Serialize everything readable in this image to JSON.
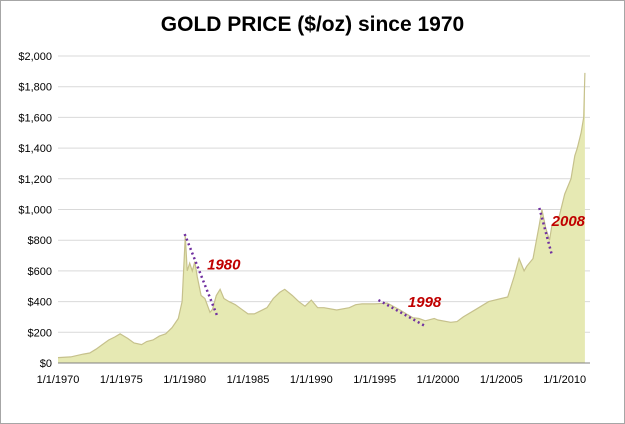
{
  "chart_data": {
    "type": "area",
    "title": "GOLD PRICE ($/oz) since 1970",
    "xlabel": "",
    "ylabel": "",
    "ylim": [
      0,
      2000
    ],
    "yticks": [
      "$0",
      "$200",
      "$400",
      "$600",
      "$800",
      "$1,000",
      "$1,200",
      "$1,400",
      "$1,600",
      "$1,800",
      "$2,000"
    ],
    "xticks": [
      "1/1/1970",
      "1/1/1975",
      "1/1/1980",
      "1/1/1985",
      "1/1/1990",
      "1/1/1995",
      "1/1/2000",
      "1/1/2005",
      "1/1/2010"
    ],
    "grid": "horizontal",
    "legend": "none",
    "colors": {
      "fill": "#e6e9b3",
      "line": "#c6c18c",
      "annotation_line": "#7030a0",
      "annotation_text": "#c00000",
      "grid": "#d9d9d9"
    },
    "series": [
      {
        "x": [
          1970.0,
          1971.0,
          1972.0,
          1972.5,
          1973.0,
          1973.5,
          1974.0,
          1974.5,
          1974.9,
          1975.5,
          1976.0,
          1976.6,
          1977.0,
          1977.5,
          1978.0,
          1978.5,
          1979.0,
          1979.5,
          1979.8,
          1980.05,
          1980.2,
          1980.4,
          1980.6,
          1980.8,
          1981.0,
          1981.3,
          1981.6,
          1982.0,
          1982.2,
          1982.5,
          1982.8,
          1983.1,
          1983.5,
          1984.0,
          1984.5,
          1985.0,
          1985.5,
          1986.0,
          1986.5,
          1987.0,
          1987.5,
          1987.9,
          1988.5,
          1989.0,
          1989.5,
          1990.0,
          1990.5,
          1991.0,
          1992.0,
          1993.0,
          1993.5,
          1994.0,
          1995.0,
          1996.0,
          1997.0,
          1997.5,
          1998.0,
          1998.5,
          1999.0,
          1999.7,
          2000.0,
          2001.0,
          2001.5,
          2002.0,
          2003.0,
          2004.0,
          2005.0,
          2005.5,
          2006.0,
          2006.4,
          2006.8,
          2007.0,
          2007.5,
          2008.0,
          2008.2,
          2008.5,
          2008.8,
          2009.0,
          2009.5,
          2010.0,
          2010.5,
          2010.8,
          2011.0,
          2011.3,
          2011.5,
          2011.6
        ],
        "values": [
          35,
          40,
          58,
          65,
          90,
          120,
          150,
          170,
          190,
          160,
          130,
          120,
          140,
          150,
          175,
          190,
          230,
          290,
          400,
          830,
          600,
          650,
          600,
          660,
          560,
          440,
          420,
          330,
          350,
          440,
          480,
          420,
          400,
          380,
          350,
          320,
          320,
          340,
          360,
          420,
          460,
          480,
          440,
          400,
          370,
          410,
          360,
          360,
          345,
          360,
          380,
          385,
          385,
          390,
          345,
          320,
          295,
          290,
          275,
          290,
          280,
          265,
          270,
          300,
          350,
          400,
          420,
          430,
          560,
          680,
          600,
          630,
          680,
          900,
          1000,
          880,
          800,
          900,
          930,
          1100,
          1200,
          1350,
          1400,
          1500,
          1600,
          1890
        ]
      }
    ],
    "annotations": [
      {
        "label": "1980",
        "x1": 1980.0,
        "y1": 840,
        "x2": 1982.6,
        "y2": 300
      },
      {
        "label": "1998",
        "x1": 1995.3,
        "y1": 410,
        "x2": 1999.0,
        "y2": 240
      },
      {
        "label": "2008",
        "x1": 2008.0,
        "y1": 1010,
        "x2": 2009.0,
        "y2": 700
      }
    ]
  }
}
